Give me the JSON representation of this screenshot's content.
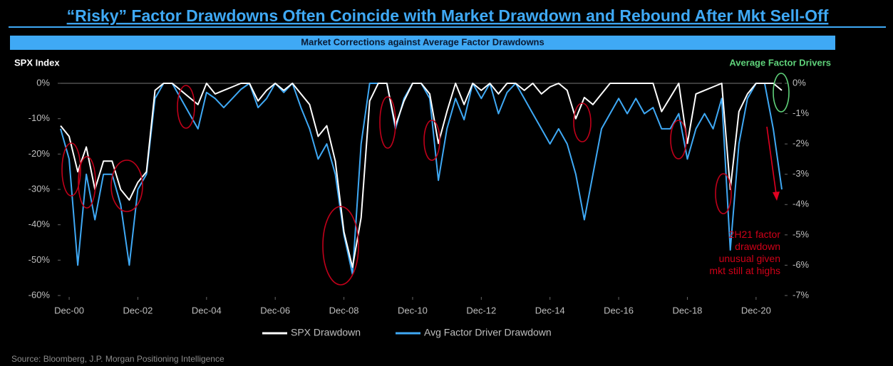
{
  "chart_data": {
    "type": "line",
    "title": "“Risky” Factor Drawdowns Often Coincide with Market Drawdown and Rebound After Mkt Sell-Off",
    "subtitle": "Market Corrections against Average Factor Drawdowns",
    "y_axis_label": "SPX Index",
    "y2_axis_label": "Average Factor Drivers",
    "annotation": "2H21 factor drawdown unusual given mkt still at highs",
    "source": "Source: Bloomberg, J.P. Morgan Positioning Intelligence",
    "x": [
      "2000-09",
      "2000-12",
      "2001-03",
      "2001-06",
      "2001-09",
      "2001-12",
      "2002-03",
      "2002-06",
      "2002-09",
      "2002-12",
      "2003-03",
      "2003-06",
      "2003-09",
      "2003-12",
      "2004-03",
      "2004-06",
      "2004-09",
      "2004-12",
      "2005-03",
      "2005-06",
      "2005-09",
      "2005-12",
      "2006-03",
      "2006-06",
      "2006-09",
      "2006-12",
      "2007-03",
      "2007-06",
      "2007-09",
      "2007-12",
      "2008-03",
      "2008-06",
      "2008-09",
      "2008-12",
      "2009-03",
      "2009-06",
      "2009-09",
      "2009-12",
      "2010-03",
      "2010-06",
      "2010-09",
      "2010-12",
      "2011-03",
      "2011-06",
      "2011-09",
      "2011-12",
      "2012-03",
      "2012-06",
      "2012-09",
      "2012-12",
      "2013-03",
      "2013-06",
      "2013-09",
      "2013-12",
      "2014-03",
      "2014-06",
      "2014-09",
      "2014-12",
      "2015-03",
      "2015-06",
      "2015-09",
      "2015-12",
      "2016-03",
      "2016-06",
      "2016-09",
      "2016-12",
      "2017-03",
      "2017-06",
      "2017-09",
      "2017-12",
      "2018-03",
      "2018-06",
      "2018-09",
      "2018-12",
      "2019-03",
      "2019-06",
      "2019-09",
      "2019-12",
      "2020-03",
      "2020-06",
      "2020-09",
      "2020-12",
      "2021-03",
      "2021-06",
      "2021-09"
    ],
    "xlim": [
      "2000-09",
      "2021-09"
    ],
    "xticks": [
      {
        "value": "2000-12",
        "label": "Dec-00"
      },
      {
        "value": "2002-12",
        "label": "Dec-02"
      },
      {
        "value": "2004-12",
        "label": "Dec-04"
      },
      {
        "value": "2006-12",
        "label": "Dec-06"
      },
      {
        "value": "2008-12",
        "label": "Dec-08"
      },
      {
        "value": "2010-12",
        "label": "Dec-10"
      },
      {
        "value": "2012-12",
        "label": "Dec-12"
      },
      {
        "value": "2014-12",
        "label": "Dec-14"
      },
      {
        "value": "2016-12",
        "label": "Dec-16"
      },
      {
        "value": "2018-12",
        "label": "Dec-18"
      },
      {
        "value": "2020-12",
        "label": "Dec-20"
      }
    ],
    "ylim": [
      -60,
      0
    ],
    "yticks": [
      {
        "value": 0,
        "label": "0%"
      },
      {
        "value": -10,
        "label": "-10%"
      },
      {
        "value": -20,
        "label": "-20%"
      },
      {
        "value": -30,
        "label": "-30%"
      },
      {
        "value": -40,
        "label": "-40%"
      },
      {
        "value": -50,
        "label": "-50%"
      },
      {
        "value": -60,
        "label": "-60%"
      }
    ],
    "y2lim": [
      -7,
      0
    ],
    "y2ticks": [
      {
        "value": 0,
        "label": "0%"
      },
      {
        "value": -1,
        "label": "-1%"
      },
      {
        "value": -2,
        "label": "-2%"
      },
      {
        "value": -3,
        "label": "-3%"
      },
      {
        "value": -4,
        "label": "-4%"
      },
      {
        "value": -5,
        "label": "-5%"
      },
      {
        "value": -6,
        "label": "-6%"
      },
      {
        "value": -7,
        "label": "-7%"
      }
    ],
    "series": [
      {
        "name": "SPX Drawdown",
        "color": "#ffffff",
        "axis": "y",
        "values": [
          -12,
          -15,
          -25,
          -18,
          -30,
          -22,
          -22,
          -30,
          -33,
          -28,
          -25,
          -2,
          0,
          0,
          -2,
          -4,
          -6,
          0,
          -3,
          -2,
          -1,
          0,
          0,
          -5,
          -2,
          0,
          -2,
          0,
          -3,
          -6,
          -15,
          -12,
          -22,
          -42,
          -52,
          -38,
          -5,
          0,
          0,
          -12,
          -5,
          0,
          0,
          -3,
          -17,
          -8,
          0,
          -6,
          0,
          -2,
          0,
          -3,
          0,
          0,
          -2,
          0,
          -3,
          -1,
          0,
          -2,
          -10,
          -4,
          -6,
          -3,
          0,
          0,
          0,
          0,
          0,
          0,
          -8,
          -4,
          0,
          -17,
          -3,
          -2,
          -1,
          0,
          -30,
          -8,
          -3,
          0,
          0,
          0,
          -2
        ]
      },
      {
        "name": "Avg Factor Driver Drawdown",
        "color": "#3fa9f5",
        "axis": "y2",
        "values": [
          -1.5,
          -2.5,
          -6,
          -3,
          -4.5,
          -3,
          -3,
          -4,
          -6,
          -3.5,
          -3,
          -0.5,
          0,
          0,
          -0.5,
          -1,
          -1.5,
          -0.3,
          -0.5,
          -0.8,
          -0.5,
          -0.2,
          0,
          -0.8,
          -0.5,
          0,
          -0.3,
          0,
          -0.8,
          -1.5,
          -2.5,
          -2,
          -3,
          -5,
          -6.3,
          -2,
          0,
          0,
          0,
          -1.5,
          -0.5,
          0,
          0,
          -0.5,
          -3.2,
          -1.5,
          -0.5,
          -1.2,
          0,
          -0.5,
          0,
          -1,
          -0.3,
          0,
          -0.5,
          -1,
          -1.5,
          -2,
          -1.5,
          -2,
          -3,
          -4.5,
          -3,
          -1.5,
          -1,
          -0.5,
          -1,
          -0.5,
          -1,
          -0.8,
          -1.5,
          -1.5,
          -1,
          -2.5,
          -1.5,
          -1,
          -1.5,
          -0.5,
          -5.5,
          -2,
          -0.5,
          0,
          0,
          -1.5,
          -3.5
        ]
      }
    ]
  }
}
